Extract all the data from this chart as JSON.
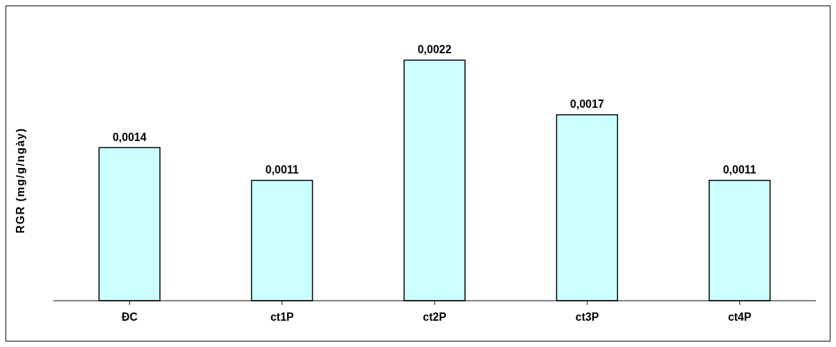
{
  "chart_data": {
    "type": "bar",
    "ylabel": "RGR (mg/g/ngày)",
    "categories": [
      "ĐC",
      "ct1P",
      "ct2P",
      "ct3P",
      "ct4P"
    ],
    "values": [
      0.0014,
      0.0011,
      0.0022,
      0.0017,
      0.0011
    ],
    "value_labels": [
      "0,0014",
      "0,0011",
      "0,0022",
      "0,0017",
      "0,0011"
    ],
    "color": "#ccffff",
    "tick_labels": "x"
  }
}
